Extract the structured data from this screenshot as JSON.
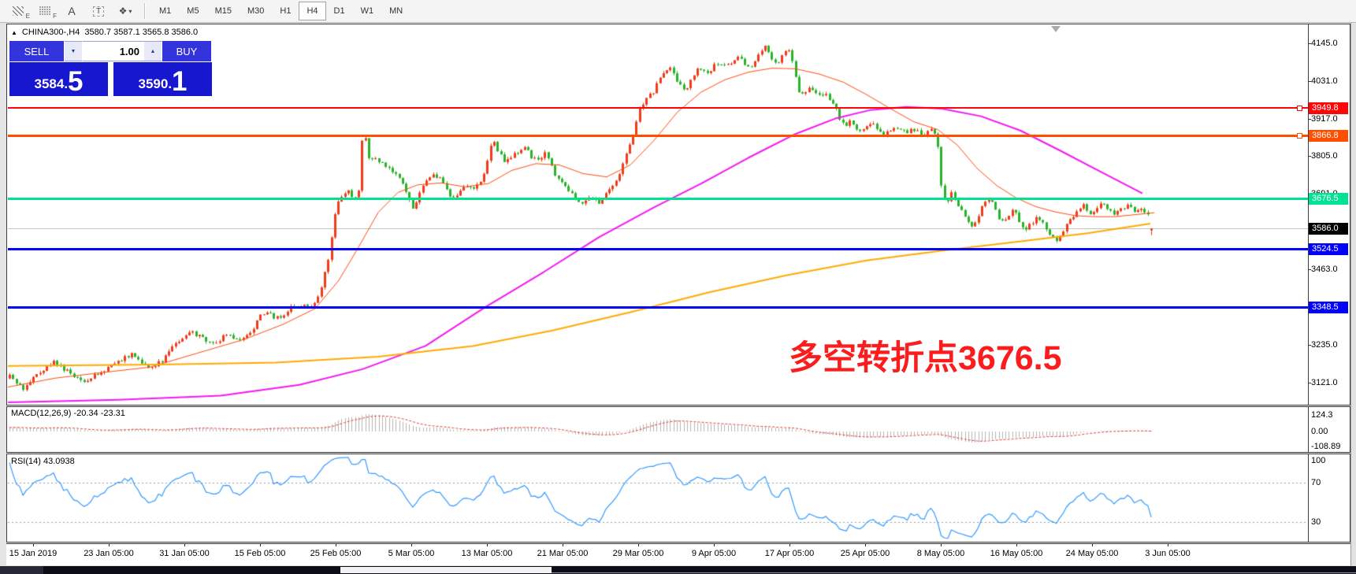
{
  "toolbar": {
    "tools": [
      {
        "name": "indicators-tool",
        "style": "hatch",
        "sub": "E"
      },
      {
        "name": "grid-tool",
        "style": "grid",
        "sub": "F"
      },
      {
        "name": "text-tool",
        "glyph": "A",
        "style": "A"
      },
      {
        "name": "label-tool",
        "glyph": "T",
        "style": "T"
      },
      {
        "name": "objects-tool",
        "glyph": "❖",
        "caret": "▾",
        "style": "shapes"
      }
    ],
    "timeframes": [
      "M1",
      "M5",
      "M15",
      "M30",
      "H1",
      "H4",
      "D1",
      "W1",
      "MN"
    ],
    "active_timeframe": "H4"
  },
  "header": {
    "collapse_icon": "▲",
    "symbol": "CHINA300-,H4",
    "ohlc_text": "3580.7 3587.1 3565.8 3586.0"
  },
  "trade_panel": {
    "sell_label": "SELL",
    "buy_label": "BUY",
    "volume": "1.00",
    "sell_price": {
      "main": "3584",
      "dot": ".",
      "big": "5"
    },
    "buy_price": {
      "main": "3590",
      "dot": ".",
      "big": "1"
    }
  },
  "annotation": {
    "text": "多空转折点3676.5",
    "color": "#fb1d1d"
  },
  "panels": {
    "macd": {
      "label": "MACD(12,26,9) -20.34 -23.31",
      "axis": [
        "124.3",
        "0.00",
        "-108.89"
      ]
    },
    "rsi": {
      "label": "RSI(14) 43.0938",
      "axis": [
        "100",
        "70",
        "30"
      ]
    }
  },
  "chart_data": {
    "type": "candlestick",
    "symbol": "CHINA300-",
    "timeframe": "H4",
    "current_ohlc": {
      "open": 3580.7,
      "high": 3587.1,
      "low": 3565.8,
      "close": 3586.0
    },
    "y_ticks": [
      4145.0,
      4031.0,
      3917.0,
      3805.0,
      3691.0,
      3577.0,
      3463.0,
      3349.0,
      3235.0,
      3121.0
    ],
    "x_labels": [
      "15 Jan 2019",
      "23 Jan 05:00",
      "31 Jan 05:00",
      "15 Feb 05:00",
      "25 Feb 05:00",
      "5 Mar 05:00",
      "13 Mar 05:00",
      "21 Mar 05:00",
      "29 Mar 05:00",
      "9 Apr 05:00",
      "17 Apr 05:00",
      "25 Apr 05:00",
      "8 May 05:00",
      "16 May 05:00",
      "24 May 05:00",
      "3 Jun 05:00"
    ],
    "levels": [
      {
        "price": 3949.8,
        "label": "3949.8",
        "color": "#ff0606",
        "width": 2,
        "badge": "#ff0606",
        "connector": true
      },
      {
        "price": 3866.8,
        "label": "3866.8",
        "color": "#ff4e00",
        "width": 3,
        "badge": "#ff4e00",
        "connector": true
      },
      {
        "price": 3676.5,
        "label": "3676.5",
        "color": "#00e393",
        "width": 3,
        "badge": "#00e393",
        "connector": false
      },
      {
        "price": 3586.0,
        "label": "3586.0",
        "color": "#c4c4c4",
        "width": 1,
        "badge": "#000000",
        "connector": false
      },
      {
        "price": 3524.5,
        "label": "3524.5",
        "color": "#0202fa",
        "width": 3,
        "badge": "#0202fa",
        "connector": false
      },
      {
        "price": 3348.5,
        "label": "3348.5",
        "color": "#0202fa",
        "width": 3,
        "badge": "#0202fa",
        "connector": false
      }
    ],
    "colors": {
      "up": "#f23b19",
      "down": "#2ab32a",
      "macd_hist": "#b4b4b4",
      "macd_signal": "#dd3c3c",
      "rsi": "#3399ff",
      "level_dash": "#9a9a9a"
    },
    "moving_averages": [
      {
        "name": "fast",
        "color": "#ff4a10",
        "line_width": 1,
        "path": [
          [
            10,
            3108
          ],
          [
            70,
            3135
          ],
          [
            130,
            3152
          ],
          [
            190,
            3168
          ],
          [
            250,
            3210
          ],
          [
            310,
            3252
          ],
          [
            360,
            3298
          ],
          [
            400,
            3345
          ],
          [
            430,
            3430
          ],
          [
            455,
            3530
          ],
          [
            480,
            3635
          ],
          [
            505,
            3695
          ],
          [
            530,
            3718
          ],
          [
            560,
            3724
          ],
          [
            590,
            3712
          ],
          [
            620,
            3722
          ],
          [
            650,
            3762
          ],
          [
            680,
            3782
          ],
          [
            710,
            3778
          ],
          [
            740,
            3752
          ],
          [
            770,
            3742
          ],
          [
            800,
            3778
          ],
          [
            830,
            3852
          ],
          [
            860,
            3938
          ],
          [
            890,
            3998
          ],
          [
            920,
            4035
          ],
          [
            950,
            4058
          ],
          [
            980,
            4070
          ],
          [
            1010,
            4068
          ],
          [
            1040,
            4052
          ],
          [
            1070,
            4028
          ],
          [
            1100,
            3990
          ],
          [
            1130,
            3948
          ],
          [
            1160,
            3908
          ],
          [
            1190,
            3885
          ],
          [
            1215,
            3838
          ],
          [
            1240,
            3768
          ],
          [
            1265,
            3716
          ],
          [
            1290,
            3678
          ],
          [
            1315,
            3652
          ],
          [
            1340,
            3636
          ],
          [
            1365,
            3625
          ],
          [
            1390,
            3622
          ],
          [
            1415,
            3622
          ],
          [
            1440,
            3628
          ],
          [
            1465,
            3634
          ]
        ]
      },
      {
        "name": "medium",
        "color": "#f218f2",
        "line_width": 2,
        "path": [
          [
            10,
            3062
          ],
          [
            150,
            3070
          ],
          [
            280,
            3082
          ],
          [
            380,
            3115
          ],
          [
            460,
            3162
          ],
          [
            540,
            3232
          ],
          [
            615,
            3348
          ],
          [
            690,
            3455
          ],
          [
            760,
            3560
          ],
          [
            830,
            3650
          ],
          [
            890,
            3722
          ],
          [
            950,
            3800
          ],
          [
            1010,
            3872
          ],
          [
            1060,
            3918
          ],
          [
            1105,
            3944
          ],
          [
            1150,
            3953
          ],
          [
            1195,
            3948
          ],
          [
            1245,
            3925
          ],
          [
            1295,
            3882
          ],
          [
            1345,
            3822
          ],
          [
            1395,
            3760
          ],
          [
            1450,
            3692
          ]
        ]
      },
      {
        "name": "slow",
        "color": "#ffaa00",
        "line_width": 2,
        "path": [
          [
            10,
            3172
          ],
          [
            200,
            3176
          ],
          [
            350,
            3182
          ],
          [
            480,
            3200
          ],
          [
            600,
            3232
          ],
          [
            700,
            3278
          ],
          [
            800,
            3334
          ],
          [
            900,
            3394
          ],
          [
            1000,
            3446
          ],
          [
            1100,
            3490
          ],
          [
            1200,
            3521
          ],
          [
            1300,
            3549
          ],
          [
            1380,
            3572
          ],
          [
            1460,
            3601
          ]
        ]
      }
    ],
    "pre_path": [
      [
        -400,
        3230
      ],
      [
        -300,
        3118
      ],
      [
        -210,
        3000
      ],
      [
        -130,
        2952
      ],
      [
        -60,
        3046
      ],
      [
        0,
        3120
      ]
    ],
    "price_path": [
      [
        12,
        3140
      ],
      [
        30,
        3098
      ],
      [
        48,
        3150
      ],
      [
        68,
        3185
      ],
      [
        88,
        3150
      ],
      [
        105,
        3122
      ],
      [
        125,
        3150
      ],
      [
        148,
        3182
      ],
      [
        168,
        3208
      ],
      [
        186,
        3165
      ],
      [
        205,
        3185
      ],
      [
        222,
        3240
      ],
      [
        240,
        3278
      ],
      [
        258,
        3252
      ],
      [
        272,
        3238
      ],
      [
        288,
        3268
      ],
      [
        302,
        3245
      ],
      [
        318,
        3272
      ],
      [
        332,
        3335
      ],
      [
        346,
        3322
      ],
      [
        358,
        3310
      ],
      [
        368,
        3348
      ],
      [
        380,
        3355
      ],
      [
        392,
        3348
      ],
      [
        402,
        3368
      ],
      [
        410,
        3430
      ],
      [
        416,
        3492
      ],
      [
        421,
        3565
      ],
      [
        426,
        3645
      ],
      [
        432,
        3678
      ],
      [
        442,
        3695
      ],
      [
        450,
        3672
      ],
      [
        456,
        3705
      ],
      [
        459,
        3845
      ],
      [
        463,
        3862
      ],
      [
        467,
        3792
      ],
      [
        474,
        3800
      ],
      [
        482,
        3786
      ],
      [
        492,
        3772
      ],
      [
        502,
        3748
      ],
      [
        510,
        3726
      ],
      [
        517,
        3692
      ],
      [
        524,
        3642
      ],
      [
        532,
        3695
      ],
      [
        542,
        3732
      ],
      [
        550,
        3752
      ],
      [
        558,
        3736
      ],
      [
        566,
        3702
      ],
      [
        573,
        3668
      ],
      [
        581,
        3692
      ],
      [
        591,
        3716
      ],
      [
        601,
        3702
      ],
      [
        611,
        3732
      ],
      [
        619,
        3792
      ],
      [
        625,
        3857
      ],
      [
        631,
        3822
      ],
      [
        639,
        3792
      ],
      [
        649,
        3806
      ],
      [
        659,
        3822
      ],
      [
        666,
        3836
      ],
      [
        673,
        3802
      ],
      [
        681,
        3792
      ],
      [
        691,
        3812
      ],
      [
        699,
        3782
      ],
      [
        706,
        3742
      ],
      [
        713,
        3722
      ],
      [
        721,
        3702
      ],
      [
        729,
        3686
      ],
      [
        736,
        3662
      ],
      [
        743,
        3666
      ],
      [
        751,
        3681
      ],
      [
        759,
        3662
      ],
      [
        767,
        3682
      ],
      [
        773,
        3702
      ],
      [
        779,
        3726
      ],
      [
        786,
        3752
      ],
      [
        793,
        3792
      ],
      [
        799,
        3846
      ],
      [
        805,
        3882
      ],
      [
        811,
        3946
      ],
      [
        817,
        3966
      ],
      [
        823,
        3986
      ],
      [
        829,
        3996
      ],
      [
        836,
        4032
      ],
      [
        843,
        4056
      ],
      [
        849,
        4076
      ],
      [
        856,
        4046
      ],
      [
        863,
        4022
      ],
      [
        869,
        4002
      ],
      [
        876,
        4032
      ],
      [
        883,
        4062
      ],
      [
        891,
        4072
      ],
      [
        899,
        4056
      ],
      [
        906,
        4076
      ],
      [
        913,
        4086
      ],
      [
        921,
        4072
      ],
      [
        929,
        4092
      ],
      [
        937,
        4106
      ],
      [
        945,
        4086
      ],
      [
        953,
        4072
      ],
      [
        959,
        4092
      ],
      [
        966,
        4122
      ],
      [
        973,
        4136
      ],
      [
        979,
        4096
      ],
      [
        986,
        4076
      ],
      [
        993,
        4106
      ],
      [
        1000,
        4128
      ],
      [
        1007,
        4076
      ],
      [
        1013,
        4002
      ],
      [
        1019,
        3992
      ],
      [
        1026,
        4012
      ],
      [
        1033,
        4002
      ],
      [
        1039,
        3988
      ],
      [
        1046,
        3996
      ],
      [
        1053,
        3972
      ],
      [
        1059,
        3962
      ],
      [
        1066,
        3906
      ],
      [
        1073,
        3896
      ],
      [
        1079,
        3912
      ],
      [
        1086,
        3882
      ],
      [
        1093,
        3872
      ],
      [
        1099,
        3892
      ],
      [
        1106,
        3906
      ],
      [
        1113,
        3882
      ],
      [
        1121,
        3866
      ],
      [
        1129,
        3882
      ],
      [
        1136,
        3896
      ],
      [
        1143,
        3882
      ],
      [
        1151,
        3872
      ],
      [
        1159,
        3886
      ],
      [
        1166,
        3876
      ],
      [
        1173,
        3872
      ],
      [
        1181,
        3882
      ],
      [
        1189,
        3862
      ],
      [
        1195,
        3706
      ],
      [
        1201,
        3656
      ],
      [
        1207,
        3692
      ],
      [
        1213,
        3666
      ],
      [
        1221,
        3642
      ],
      [
        1229,
        3606
      ],
      [
        1235,
        3586
      ],
      [
        1241,
        3622
      ],
      [
        1249,
        3662
      ],
      [
        1256,
        3682
      ],
      [
        1263,
        3642
      ],
      [
        1271,
        3602
      ],
      [
        1279,
        3622
      ],
      [
        1286,
        3646
      ],
      [
        1293,
        3612
      ],
      [
        1301,
        3582
      ],
      [
        1309,
        3602
      ],
      [
        1317,
        3622
      ],
      [
        1325,
        3602
      ],
      [
        1331,
        3576
      ],
      [
        1339,
        3542
      ],
      [
        1346,
        3562
      ],
      [
        1353,
        3592
      ],
      [
        1361,
        3622
      ],
      [
        1369,
        3642
      ],
      [
        1376,
        3656
      ],
      [
        1383,
        3632
      ],
      [
        1391,
        3646
      ],
      [
        1399,
        3662
      ],
      [
        1407,
        3642
      ],
      [
        1415,
        3626
      ],
      [
        1423,
        3646
      ],
      [
        1431,
        3656
      ],
      [
        1439,
        3642
      ],
      [
        1447,
        3652
      ],
      [
        1453,
        3636
      ],
      [
        1459,
        3616
      ],
      [
        1465,
        3586
      ]
    ],
    "indicators": [
      {
        "name": "MACD",
        "params": [
          12,
          26,
          9
        ],
        "values": [
          -20.34,
          -23.31
        ]
      },
      {
        "name": "RSI",
        "params": [
          14
        ],
        "value": 43.0938
      }
    ]
  }
}
